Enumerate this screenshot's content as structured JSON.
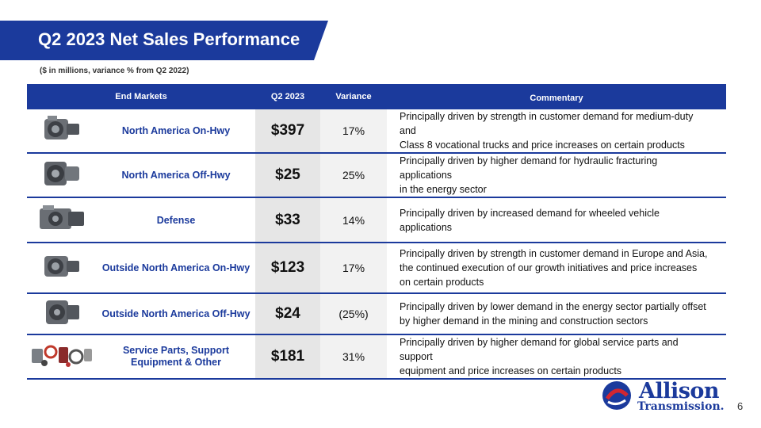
{
  "title": "Q2 2023 Net Sales Performance",
  "subtitle": "($ in millions, variance % from Q2 2022)",
  "headers": {
    "end_markets": "End Markets",
    "q2": "Q2 2023",
    "variance": "Variance",
    "commentary": "Commentary"
  },
  "rows": [
    {
      "market": "North America On-Hwy",
      "q2": "$397",
      "variance": "17%",
      "comment1": "Principally driven by strength in customer demand for medium-duty and",
      "comment2": "Class 8 vocational trucks and price increases on certain products",
      "comment3": ""
    },
    {
      "market": "North America Off-Hwy",
      "q2": "$25",
      "variance": "25%",
      "comment1": "Principally driven by higher demand for hydraulic fracturing applications",
      "comment2": "in the energy sector",
      "comment3": ""
    },
    {
      "market": "Defense",
      "q2": "$33",
      "variance": "14%",
      "comment1": "Principally driven by increased demand for wheeled vehicle applications",
      "comment2": "",
      "comment3": ""
    },
    {
      "market": "Outside North America On-Hwy",
      "q2": "$123",
      "variance": "17%",
      "comment1": "Principally driven by strength in customer demand in Europe and Asia,",
      "comment2": "the continued execution of our growth initiatives and price increases",
      "comment3": "on certain products"
    },
    {
      "market": "Outside North America Off-Hwy",
      "q2": "$24",
      "variance": "(25%)",
      "comment1": "Principally driven by lower demand in the energy sector partially offset",
      "comment2": "by higher demand in the mining and construction sectors",
      "comment3": ""
    },
    {
      "market1": "Service Parts, Support",
      "market2": "Equipment & Other",
      "q2": "$181",
      "variance": "31%",
      "comment1": "Principally driven by higher demand for global service parts and support",
      "comment2": "equipment and price increases on certain products",
      "comment3": ""
    }
  ],
  "logo": {
    "word1": "Allison",
    "word2": "Transmission."
  },
  "page_number": "6"
}
